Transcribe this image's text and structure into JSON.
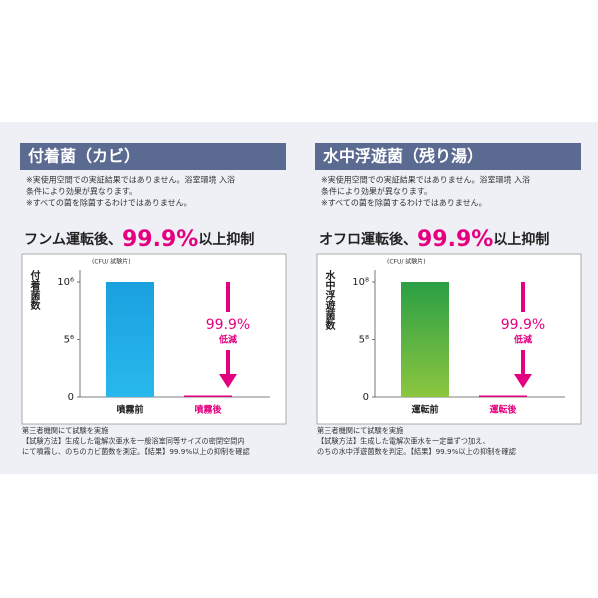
{
  "chart_data": [
    {
      "type": "bar",
      "title": "付着菌（カビ）",
      "notes": [
        "※実使用空間での実証結果ではありません。浴室環境 入浴",
        "条件により効果が異なります。",
        "※すべての菌を除菌するわけではありません。"
      ],
      "headline": [
        "フンム運転後、",
        "99.9%",
        "以上抑制"
      ],
      "unit": "(CFU/ 試験片)",
      "y_label": "付着菌数",
      "categories": [
        "噴霧前",
        "噴霧後"
      ],
      "values": [
        10,
        0
      ],
      "colors": [
        "#1ea7e4",
        "#e5007f"
      ],
      "ylim": [
        0,
        11
      ],
      "yticks": [
        0,
        {
          "value": 5,
          "label": "5⁶"
        },
        {
          "value": 10,
          "label": "10⁶"
        }
      ],
      "annotation": [
        "99.9%",
        "低減"
      ],
      "footnotes": [
        "第三者機関にて試験を実施",
        "【試験方法】生成した電解次亜水を一般浴室同等サイズの密閉空間内",
        "にて噴霧し、のちのカビ菌数を測定。【結果】99.9%以上の抑制を確認"
      ]
    },
    {
      "type": "bar",
      "title": "水中浮遊菌（残り湯）",
      "notes": [
        "※実使用空間での実証結果ではありません。浴室環境 入浴",
        "条件により効果が異なります。",
        "※すべての菌を除菌するわけではありません。"
      ],
      "headline": [
        "オフロ運転後、",
        "99.9%",
        "以上抑制"
      ],
      "unit": "(CFU/ 試験片)",
      "y_label": "水中浮遊菌数",
      "categories": [
        "運転前",
        "運転後"
      ],
      "values": [
        10,
        0
      ],
      "colors": [
        "#3aaa45",
        "#e5007f"
      ],
      "ylim": [
        0,
        11
      ],
      "yticks": [
        0,
        {
          "value": 5,
          "label": "5⁸"
        },
        {
          "value": 10,
          "label": "10⁸"
        }
      ],
      "annotation": [
        "99.9%",
        "低減"
      ],
      "footnotes": [
        "第三者機関にて試験を実施",
        "【試験方法】生成した電解次亜水を一定量ずつ加え、",
        "のちの水中浮遊菌数を判定。【結果】99.9%以上の抑制を確認"
      ]
    }
  ]
}
